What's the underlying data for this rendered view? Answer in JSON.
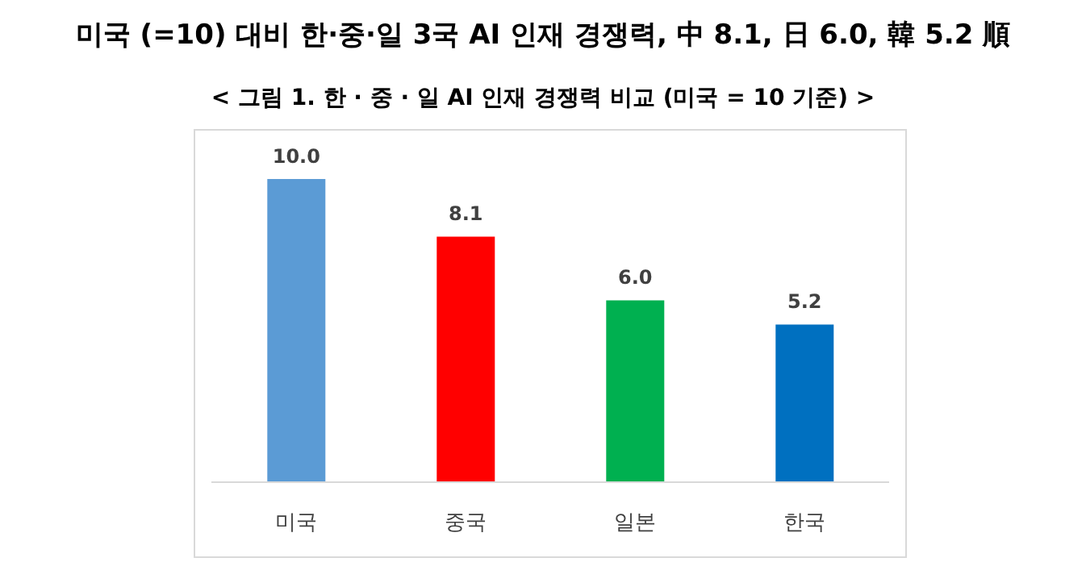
{
  "chart_data": {
    "type": "bar",
    "title": "미국 (=10) 대비 한·중·일 3국 AI 인재 경쟁력, 中 8.1, 日 6.0, 韓 5.2 順",
    "subtitle": "< 그림 1. 한 · 중 · 일 AI 인재 경쟁력 비교 (미국 = 10 기준) >",
    "categories": [
      "미국",
      "중국",
      "일본",
      "한국"
    ],
    "values": [
      10.0,
      8.1,
      6.0,
      5.2
    ],
    "colors": [
      "#5b9bd5",
      "#ff0000",
      "#00b050",
      "#0070c0"
    ],
    "value_labels": [
      "10.0",
      "8.1",
      "6.0",
      "5.2"
    ],
    "tick_labels": "x"
  }
}
